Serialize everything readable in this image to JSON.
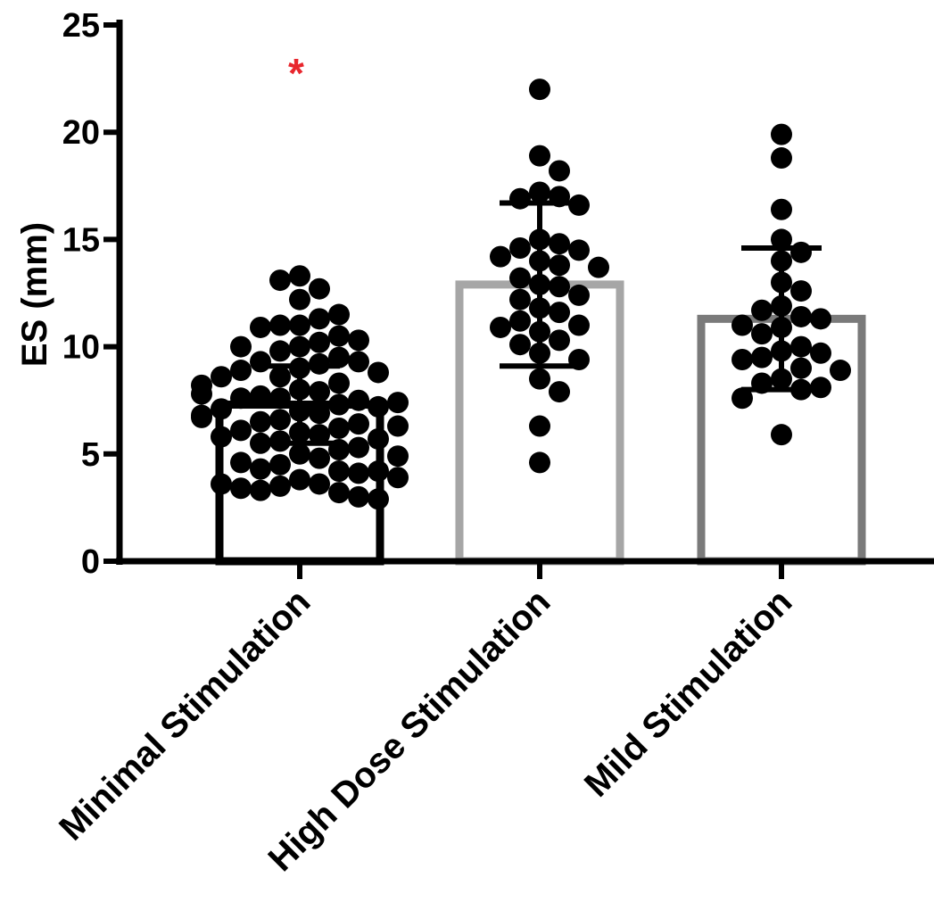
{
  "chart_data": {
    "type": "bar",
    "title": "",
    "xlabel": "",
    "ylabel": "ES (mm)",
    "ylim": [
      0,
      25
    ],
    "yticks": [
      "0",
      "5",
      "10",
      "15",
      "20",
      "25"
    ],
    "grid": false,
    "legend": "none",
    "categories": [
      "Minimal Stimulation",
      "High Dose Stimulation",
      "Mild Stimulation"
    ],
    "series": [
      {
        "values": [
          7.3,
          12.9,
          11.3
        ],
        "sd": [
          1.8,
          3.8,
          3.3
        ],
        "bar_colors": [
          "#000000",
          "#a6a6a6",
          "#7a7a7a"
        ],
        "points": [
          [
            13.3,
            12.7,
            13.1,
            12.2,
            11.3,
            11.0,
            11.0,
            11.5,
            10.9,
            10.5,
            10.2,
            10.0,
            9.8,
            10.3,
            10.0,
            9.5,
            9.3,
            9.2,
            9.0,
            9.3,
            8.9,
            8.6,
            8.8,
            8.6,
            8.3,
            8.0,
            7.9,
            7.7,
            7.6,
            7.5,
            7.6,
            7.3,
            7.2,
            7.0,
            6.9,
            7.1,
            7.4,
            6.8,
            6.6,
            6.5,
            6.7,
            6.4,
            6.2,
            6.0,
            5.9,
            6.1,
            5.7,
            5.6,
            5.5,
            5.3,
            5.0,
            5.2,
            4.8,
            4.5,
            4.3,
            4.6,
            4.2,
            4.1,
            4.2,
            3.8,
            3.6,
            3.5,
            3.4,
            3.6,
            3.2,
            3.3,
            3.0,
            2.9,
            8.2,
            7.8,
            6.3,
            5.8,
            4.9,
            3.9
          ],
          [
            22.0,
            18.9,
            18.2,
            17.2,
            17.0,
            16.9,
            16.6,
            15.0,
            14.8,
            14.6,
            14.5,
            14.2,
            14.0,
            13.8,
            13.7,
            13.2,
            12.9,
            12.8,
            12.4,
            12.2,
            11.8,
            11.6,
            11.2,
            11.0,
            10.9,
            10.7,
            10.3,
            10.1,
            9.7,
            9.4,
            8.5,
            7.9,
            6.3,
            4.6
          ],
          [
            19.9,
            18.8,
            16.4,
            15.0,
            14.4,
            14.0,
            13.0,
            12.6,
            11.9,
            11.7,
            11.4,
            11.3,
            11.0,
            10.9,
            10.6,
            10.0,
            9.8,
            9.7,
            9.5,
            9.4,
            9.0,
            8.9,
            8.5,
            8.3,
            8.1,
            8.0,
            7.6,
            5.9
          ]
        ]
      }
    ],
    "annotations": [
      {
        "text": "*",
        "category": "Minimal Stimulation",
        "color": "#e8262d"
      }
    ]
  }
}
